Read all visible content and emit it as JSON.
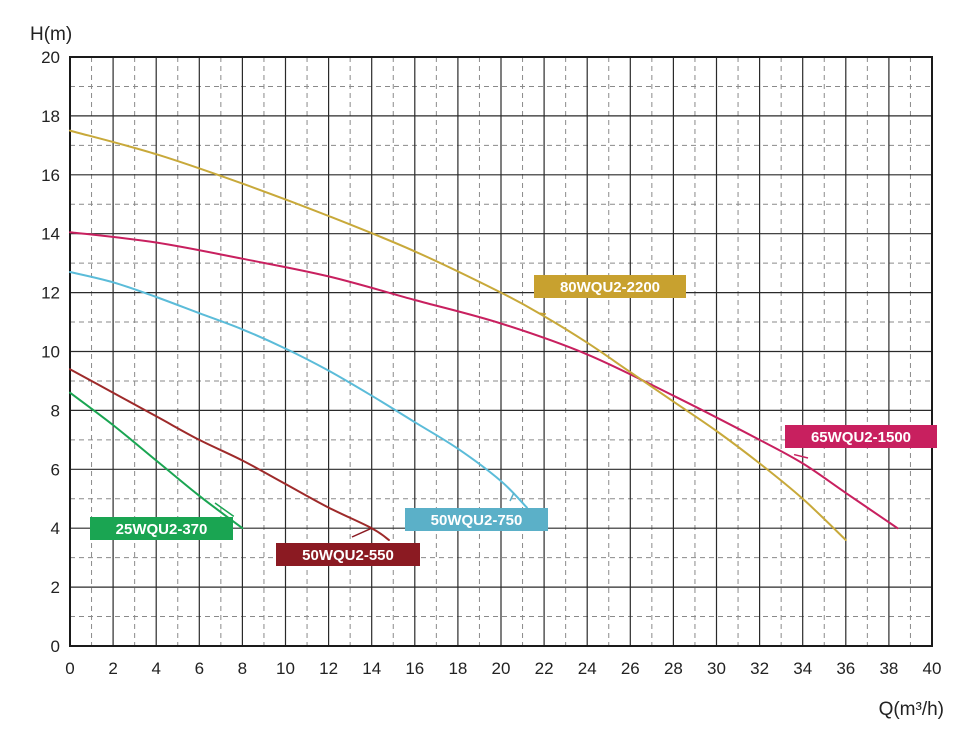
{
  "chart_data": {
    "type": "line",
    "title": "",
    "xlabel": "Q(m³/h)",
    "ylabel": "H(m)",
    "xlim": [
      0,
      40
    ],
    "ylim": [
      0,
      20
    ],
    "x_ticks": [
      0,
      2,
      4,
      6,
      8,
      10,
      12,
      14,
      16,
      18,
      20,
      22,
      24,
      26,
      28,
      30,
      32,
      34,
      36,
      38,
      40
    ],
    "y_ticks": [
      0,
      2,
      4,
      6,
      8,
      10,
      12,
      14,
      16,
      18,
      20
    ],
    "grid": "solid major lines with dashed minor lines",
    "series": [
      {
        "name": "25WQU2-370",
        "color": "#1aa552",
        "points": [
          [
            0,
            8.6
          ],
          [
            2,
            7.5
          ],
          [
            4,
            6.3
          ],
          [
            6,
            5.1
          ],
          [
            8,
            4.0
          ]
        ]
      },
      {
        "name": "50WQU2-550",
        "color": "#9e2a2a",
        "points": [
          [
            0,
            9.4
          ],
          [
            2,
            8.6
          ],
          [
            4,
            7.8
          ],
          [
            6,
            7.0
          ],
          [
            8,
            6.3
          ],
          [
            10,
            5.5
          ],
          [
            12,
            4.7
          ],
          [
            14,
            4.0
          ],
          [
            14.8,
            3.6
          ]
        ]
      },
      {
        "name": "50WQU2-750",
        "color": "#5bbcd9",
        "points": [
          [
            0,
            12.7
          ],
          [
            2,
            12.35
          ],
          [
            4,
            11.85
          ],
          [
            6,
            11.3
          ],
          [
            8,
            10.75
          ],
          [
            10,
            10.1
          ],
          [
            12,
            9.35
          ],
          [
            14,
            8.5
          ],
          [
            16,
            7.6
          ],
          [
            18,
            6.7
          ],
          [
            20,
            5.6
          ],
          [
            21.2,
            4.7
          ]
        ]
      },
      {
        "name": "65WQU2-1500",
        "color": "#c8205f",
        "points": [
          [
            0,
            14.05
          ],
          [
            4,
            13.7
          ],
          [
            8,
            13.15
          ],
          [
            12,
            12.55
          ],
          [
            16,
            11.75
          ],
          [
            20,
            10.95
          ],
          [
            24,
            9.9
          ],
          [
            28,
            8.5
          ],
          [
            32,
            7.0
          ],
          [
            34,
            6.2
          ],
          [
            36,
            5.2
          ],
          [
            38.4,
            4.0
          ]
        ]
      },
      {
        "name": "80WQU2-2200",
        "color": "#c8a93a",
        "points": [
          [
            0,
            17.5
          ],
          [
            4,
            16.7
          ],
          [
            8,
            15.7
          ],
          [
            12,
            14.6
          ],
          [
            16,
            13.4
          ],
          [
            20,
            12.0
          ],
          [
            22,
            11.2
          ],
          [
            24,
            10.3
          ],
          [
            26,
            9.3
          ],
          [
            28,
            8.3
          ],
          [
            30,
            7.3
          ],
          [
            32,
            6.2
          ],
          [
            34,
            5.0
          ],
          [
            36,
            3.6
          ]
        ]
      }
    ],
    "annotations": [
      {
        "text": "25WQU2-370",
        "color": "#1aa552",
        "anchor": [
          7.6,
          4.4
        ]
      },
      {
        "text": "50WQU2-550",
        "color": "#8b1a22",
        "anchor": [
          14.0,
          4.0
        ]
      },
      {
        "text": "50WQU2-750",
        "color": "#5bb0c8",
        "anchor": [
          20.6,
          5.2
        ]
      },
      {
        "text": "80WQU2-2200",
        "color": "#c8a12f",
        "anchor": [
          21.8,
          11.3
        ]
      },
      {
        "text": "65WQU2-1500",
        "color": "#c8205f",
        "anchor": [
          33.6,
          6.5
        ]
      }
    ]
  }
}
